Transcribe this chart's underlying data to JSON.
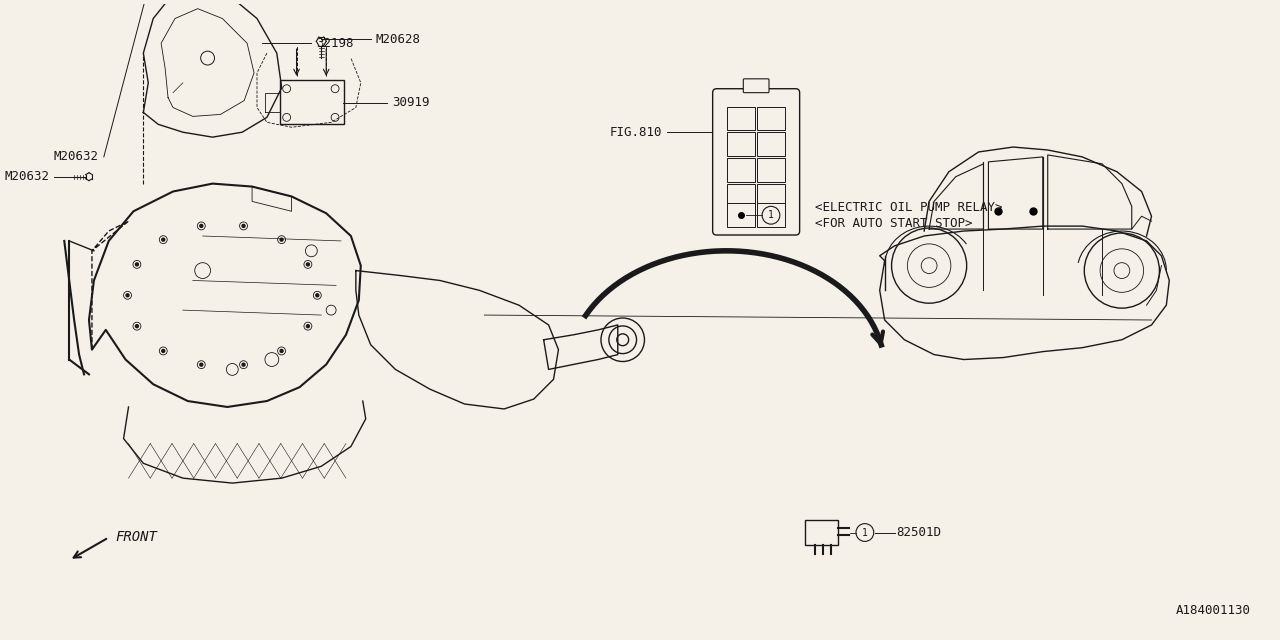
{
  "bg_color": "#F5F0E8",
  "line_color": "#1A1A1A",
  "fig_ref": "A184001130",
  "labels": {
    "M20632_top": "M20632",
    "M20632_left": "M20632",
    "M20628": "M20628",
    "part_32198": "32198",
    "part_30919": "30919",
    "fig810": "FIG.810",
    "relay_label1": "<ELECTRIC OIL PUMP RELAY>",
    "relay_label2": "<FOR AUTO START STOP>",
    "part_82501D": "82501D",
    "front_label": "FRONT"
  },
  "font_size": 9,
  "font_family": "monospace",
  "lw_main": 1.0,
  "lw_thin": 0.6,
  "lw_thick": 1.5
}
